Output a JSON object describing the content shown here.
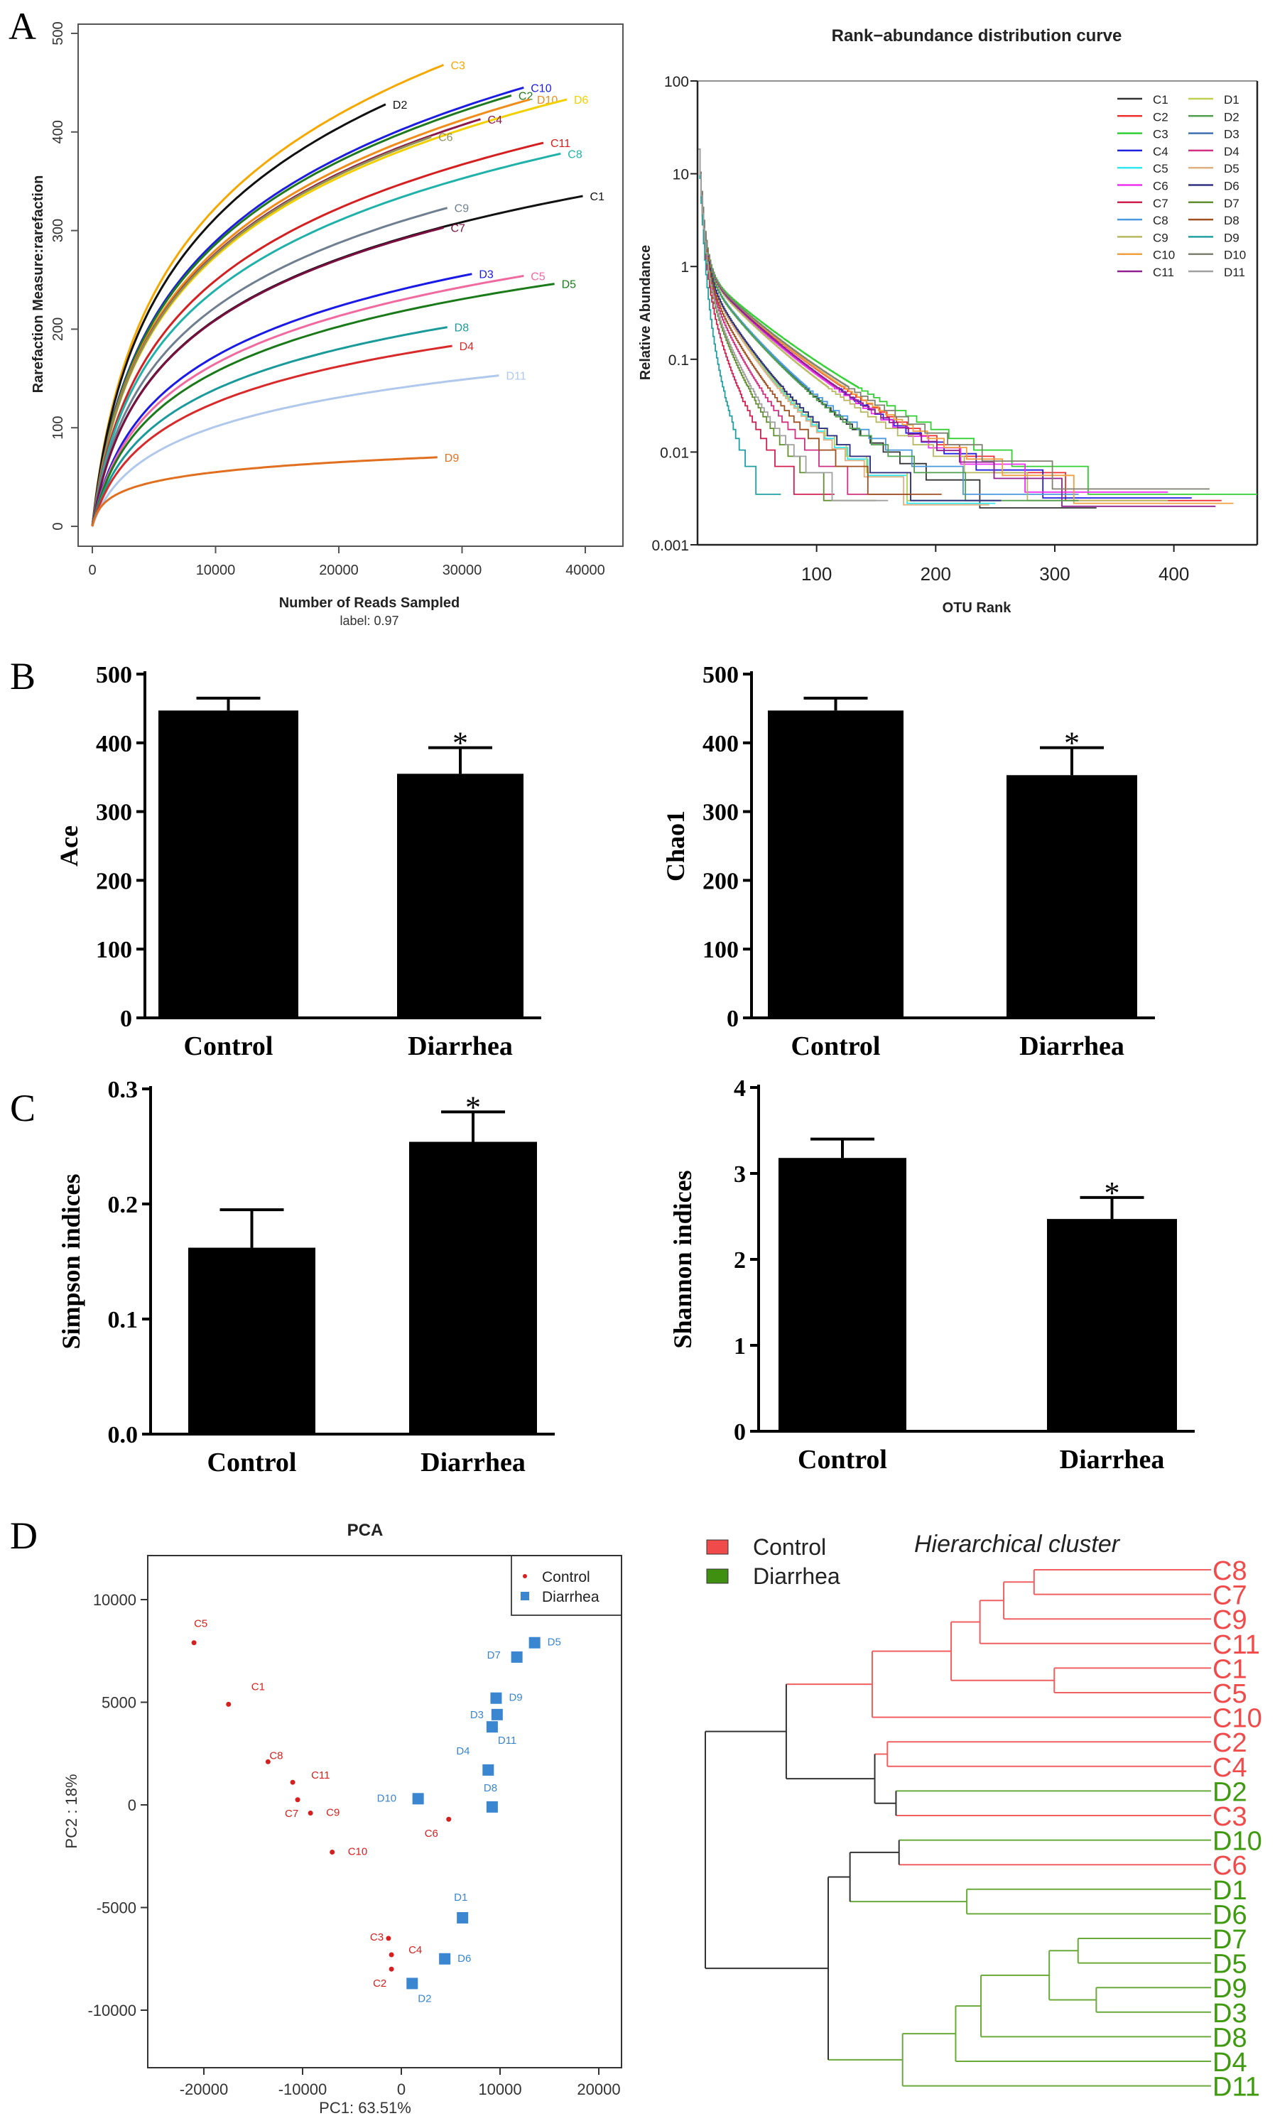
{
  "panel_letters": [
    "A",
    "B",
    "C",
    "D"
  ],
  "chart_data": [
    {
      "id": "rarefaction",
      "type": "line",
      "title": "",
      "xlabel": "Number of Reads Sampled",
      "subtitle": "label: 0.97",
      "ylabel": "Rarefaction Measure:rarefaction",
      "xlim": [
        0,
        42000
      ],
      "ylim": [
        0,
        500
      ],
      "xticks": [
        0,
        10000,
        20000,
        30000,
        40000
      ],
      "yticks": [
        0,
        100,
        200,
        300,
        400,
        500
      ],
      "grid": false,
      "series": [
        {
          "name": "C3",
          "color": "#f5a800",
          "end_x": 28500,
          "end_y": 468
        },
        {
          "name": "C10",
          "color": "#1d1de0",
          "end_x": 35000,
          "end_y": 445
        },
        {
          "name": "C2",
          "color": "#1f7a1f",
          "end_x": 34000,
          "end_y": 437
        },
        {
          "name": "D10",
          "color": "#f08c1a",
          "end_x": 35500,
          "end_y": 433
        },
        {
          "name": "D6",
          "color": "#f2d000",
          "end_x": 38500,
          "end_y": 433
        },
        {
          "name": "D2",
          "color": "#111111",
          "end_x": 23800,
          "end_y": 428
        },
        {
          "name": "C4",
          "color": "#8b1a4a",
          "end_x": 31500,
          "end_y": 413
        },
        {
          "name": "C6",
          "color": "#8f8f5a",
          "end_x": 27500,
          "end_y": 395
        },
        {
          "name": "C11",
          "color": "#d42020",
          "end_x": 36600,
          "end_y": 389
        },
        {
          "name": "C8",
          "color": "#20b2aa",
          "end_x": 38000,
          "end_y": 378
        },
        {
          "name": "C1",
          "color": "#111111",
          "end_x": 39800,
          "end_y": 335
        },
        {
          "name": "C9",
          "color": "#6f7f90",
          "end_x": 28800,
          "end_y": 323
        },
        {
          "name": "C7",
          "color": "#7a1040",
          "end_x": 28500,
          "end_y": 303
        },
        {
          "name": "D3",
          "color": "#1a1ae6",
          "end_x": 30800,
          "end_y": 256
        },
        {
          "name": "C5",
          "color": "#f06aa0",
          "end_x": 35000,
          "end_y": 254
        },
        {
          "name": "D5",
          "color": "#1a7a1a",
          "end_x": 37500,
          "end_y": 246
        },
        {
          "name": "D8",
          "color": "#1a9a9a",
          "end_x": 28800,
          "end_y": 202
        },
        {
          "name": "D4",
          "color": "#d82a2a",
          "end_x": 29200,
          "end_y": 183
        },
        {
          "name": "D11",
          "color": "#b0c8ec",
          "end_x": 33000,
          "end_y": 153
        },
        {
          "name": "D9",
          "color": "#e07020",
          "end_x": 28000,
          "end_y": 70
        }
      ]
    },
    {
      "id": "rank-abundance",
      "type": "line",
      "title": "Rank−abundance distribution curve",
      "xlabel": "OTU Rank",
      "ylabel": "Relative Abundance",
      "yscale": "log",
      "xlim": [
        0,
        470
      ],
      "ylim": [
        0.001,
        100
      ],
      "xticks": [
        100,
        200,
        300,
        400
      ],
      "yticks": [
        {
          "v": 100,
          "label": "100"
        },
        {
          "v": 10,
          "label": "10"
        },
        {
          "v": 1,
          "label": "1"
        },
        {
          "v": 0.1,
          "label": "0.1"
        },
        {
          "v": 0.01,
          "label": "0.01"
        },
        {
          "v": 0.001,
          "label": "0.001"
        }
      ],
      "legend_position": "top-right",
      "series": [
        {
          "name": "C1",
          "color": "#333333",
          "max_rank": 335,
          "min_abundance": 0.0025
        },
        {
          "name": "C2",
          "color": "#f03030",
          "max_rank": 440,
          "min_abundance": 0.003
        },
        {
          "name": "C3",
          "color": "#30d030",
          "max_rank": 470,
          "min_abundance": 0.0035
        },
        {
          "name": "C4",
          "color": "#2020e0",
          "max_rank": 415,
          "min_abundance": 0.0032
        },
        {
          "name": "C5",
          "color": "#30e8f0",
          "max_rank": 250,
          "min_abundance": 0.0028
        },
        {
          "name": "C6",
          "color": "#f030f0",
          "max_rank": 395,
          "min_abundance": 0.0037
        },
        {
          "name": "C7",
          "color": "#d02050",
          "max_rank": 115,
          "min_abundance": 0.0035
        },
        {
          "name": "C8",
          "color": "#4a9ae0",
          "max_rank": 320,
          "min_abundance": 0.0035
        },
        {
          "name": "C9",
          "color": "#b8b860",
          "max_rank": 395,
          "min_abundance": 0.003
        },
        {
          "name": "C10",
          "color": "#f0a040",
          "max_rank": 450,
          "min_abundance": 0.0028
        },
        {
          "name": "C11",
          "color": "#902090",
          "max_rank": 435,
          "min_abundance": 0.0026
        },
        {
          "name": "D1",
          "color": "#c0d050",
          "max_rank": 250,
          "min_abundance": 0.003
        },
        {
          "name": "D2",
          "color": "#50a050",
          "max_rank": 320,
          "min_abundance": 0.003
        },
        {
          "name": "D3",
          "color": "#4070b0",
          "max_rank": 255,
          "min_abundance": 0.003
        },
        {
          "name": "D4",
          "color": "#d03080",
          "max_rank": 180,
          "min_abundance": 0.0035
        },
        {
          "name": "D5",
          "color": "#e0b080",
          "max_rank": 245,
          "min_abundance": 0.0027
        },
        {
          "name": "D6",
          "color": "#303080",
          "max_rank": 255,
          "min_abundance": 0.003
        },
        {
          "name": "D7",
          "color": "#609030",
          "max_rank": 150,
          "min_abundance": 0.003
        },
        {
          "name": "D8",
          "color": "#a05020",
          "max_rank": 205,
          "min_abundance": 0.0035
        },
        {
          "name": "D9",
          "color": "#20a0a0",
          "max_rank": 70,
          "min_abundance": 0.0035
        },
        {
          "name": "D10",
          "color": "#808070",
          "max_rank": 430,
          "min_abundance": 0.004
        },
        {
          "name": "D11",
          "color": "#a0a0a0",
          "max_rank": 160,
          "min_abundance": 0.003
        }
      ]
    },
    {
      "id": "ace",
      "type": "bar",
      "ylabel": "Ace",
      "categories": [
        "Control",
        "Diarrhea"
      ],
      "values": [
        447,
        355
      ],
      "error_upper": [
        465,
        393
      ],
      "significance": [
        "",
        "*"
      ],
      "ylim": [
        0,
        500
      ],
      "yticks": [
        0,
        100,
        200,
        300,
        400,
        500
      ]
    },
    {
      "id": "chao1",
      "type": "bar",
      "ylabel": "Chao1",
      "categories": [
        "Control",
        "Diarrhea"
      ],
      "values": [
        447,
        353
      ],
      "error_upper": [
        465,
        393
      ],
      "significance": [
        "",
        "*"
      ],
      "ylim": [
        0,
        500
      ],
      "yticks": [
        0,
        100,
        200,
        300,
        400,
        500
      ]
    },
    {
      "id": "simpson",
      "type": "bar",
      "ylabel": "Simpson indices",
      "categories": [
        "Control",
        "Diarrhea"
      ],
      "values": [
        0.162,
        0.254
      ],
      "error_upper": [
        0.195,
        0.28
      ],
      "significance": [
        "",
        "*"
      ],
      "ylim": [
        0,
        0.3
      ],
      "yticks": [
        {
          "v": 0,
          "label": "0.0"
        },
        {
          "v": 0.1,
          "label": "0.1"
        },
        {
          "v": 0.2,
          "label": "0.2"
        },
        {
          "v": 0.3,
          "label": "0.3"
        }
      ]
    },
    {
      "id": "shannon",
      "type": "bar",
      "ylabel": "Shannon indices",
      "categories": [
        "Control",
        "Diarrhea"
      ],
      "values": [
        3.18,
        2.47
      ],
      "error_upper": [
        3.4,
        2.72
      ],
      "significance": [
        "",
        "*"
      ],
      "ylim": [
        0,
        4
      ],
      "yticks": [
        0,
        1,
        2,
        3,
        4
      ]
    },
    {
      "id": "pca",
      "type": "scatter",
      "title": "PCA",
      "xlabel": "PC1: 63.51%",
      "ylabel": "PC2 : 18%",
      "xlim": [
        -25000,
        21500
      ],
      "ylim": [
        -12500,
        12000
      ],
      "xticks": [
        -20000,
        -10000,
        0,
        10000,
        20000
      ],
      "yticks": [
        -10000,
        -5000,
        0,
        5000,
        10000
      ],
      "legend_position": "top-right",
      "groups": [
        {
          "name": "Control",
          "color": "#d42020",
          "marker": "dot",
          "points": [
            {
              "label": "C5",
              "x": -21000,
              "y": 7900
            },
            {
              "label": "C1",
              "x": -17500,
              "y": 4900
            },
            {
              "label": "C8",
              "x": -13500,
              "y": 2100
            },
            {
              "label": "C11",
              "x": -11000,
              "y": 1100
            },
            {
              "label": "C7",
              "x": -10500,
              "y": 250
            },
            {
              "label": "C9",
              "x": -9200,
              "y": -400
            },
            {
              "label": "C10",
              "x": -7000,
              "y": -2300
            },
            {
              "label": "C6",
              "x": 4800,
              "y": -700
            },
            {
              "label": "C3",
              "x": -1300,
              "y": -6500
            },
            {
              "label": "C4",
              "x": -1000,
              "y": -7300
            },
            {
              "label": "C2",
              "x": -1000,
              "y": -8000
            }
          ]
        },
        {
          "name": "Diarrhea",
          "color": "#3a86d0",
          "marker": "square",
          "points": [
            {
              "label": "D5",
              "x": 13500,
              "y": 7900
            },
            {
              "label": "D7",
              "x": 11700,
              "y": 7200
            },
            {
              "label": "D9",
              "x": 9600,
              "y": 5200
            },
            {
              "label": "D3",
              "x": 9700,
              "y": 4400
            },
            {
              "label": "D11",
              "x": 9200,
              "y": 3800
            },
            {
              "label": "D4",
              "x": 8800,
              "y": 1700
            },
            {
              "label": "D8",
              "x": 9200,
              "y": -100
            },
            {
              "label": "D10",
              "x": 1700,
              "y": 300
            },
            {
              "label": "D1",
              "x": 6200,
              "y": -5500
            },
            {
              "label": "D6",
              "x": 4400,
              "y": -7500
            },
            {
              "label": "D2",
              "x": 1100,
              "y": -8700
            }
          ]
        }
      ]
    },
    {
      "id": "cluster",
      "type": "dendrogram",
      "title": "Hierarchical cluster",
      "legend": [
        {
          "name": "Control",
          "color": "#f04a4a"
        },
        {
          "name": "Diarrhea",
          "color": "#3f8f10"
        }
      ],
      "label_colors": {
        "Control": "#f04a4a",
        "Diarrhea": "#3f9a10"
      },
      "tree": {
        "h": 1.0,
        "children": [
          {
            "h": 0.84,
            "children": [
              {
                "h": 0.67,
                "children": [
                  {
                    "h": 0.514,
                    "children": [
                      {
                        "h": 0.457,
                        "children": [
                          {
                            "h": 0.41,
                            "children": [
                              {
                                "h": 0.35,
                                "children": [
                                  {
                                    "leaf": "C8"
                                  },
                                  {
                                    "leaf": "C7"
                                  }
                                ]
                              },
                              {
                                "leaf": "C9"
                              }
                            ]
                          },
                          {
                            "leaf": "C11"
                          }
                        ]
                      },
                      {
                        "h": 0.31,
                        "children": [
                          {
                            "leaf": "C1"
                          },
                          {
                            "leaf": "C5"
                          }
                        ]
                      }
                    ]
                  },
                  {
                    "leaf": "C10"
                  }
                ]
              },
              {
                "h": 0.665,
                "children": [
                  {
                    "h": 0.64,
                    "children": [
                      {
                        "leaf": "C2"
                      },
                      {
                        "leaf": "C4"
                      }
                    ]
                  },
                  {
                    "h": 0.623,
                    "children": [
                      {
                        "leaf": "D2"
                      },
                      {
                        "leaf": "C3"
                      }
                    ]
                  }
                ]
              }
            ]
          },
          {
            "h": 0.757,
            "children": [
              {
                "h": 0.714,
                "children": [
                  {
                    "h": 0.617,
                    "children": [
                      {
                        "leaf": "D10"
                      },
                      {
                        "leaf": "C6"
                      }
                    ]
                  },
                  {
                    "h": 0.483,
                    "children": [
                      {
                        "leaf": "D1"
                      },
                      {
                        "leaf": "D6"
                      }
                    ]
                  }
                ]
              },
              {
                "h": 0.61,
                "children": [
                  {
                    "h": 0.505,
                    "children": [
                      {
                        "h": 0.455,
                        "children": [
                          {
                            "h": 0.32,
                            "children": [
                              {
                                "h": 0.263,
                                "children": [
                                  {
                                    "leaf": "D7"
                                  },
                                  {
                                    "leaf": "D5"
                                  }
                                ]
                              },
                              {
                                "h": 0.227,
                                "children": [
                                  {
                                    "leaf": "D9"
                                  },
                                  {
                                    "leaf": "D3"
                                  }
                                ]
                              }
                            ]
                          },
                          {
                            "leaf": "D8"
                          }
                        ]
                      },
                      {
                        "leaf": "D4"
                      }
                    ]
                  },
                  {
                    "leaf": "D11"
                  }
                ]
              }
            ]
          }
        ]
      }
    }
  ]
}
